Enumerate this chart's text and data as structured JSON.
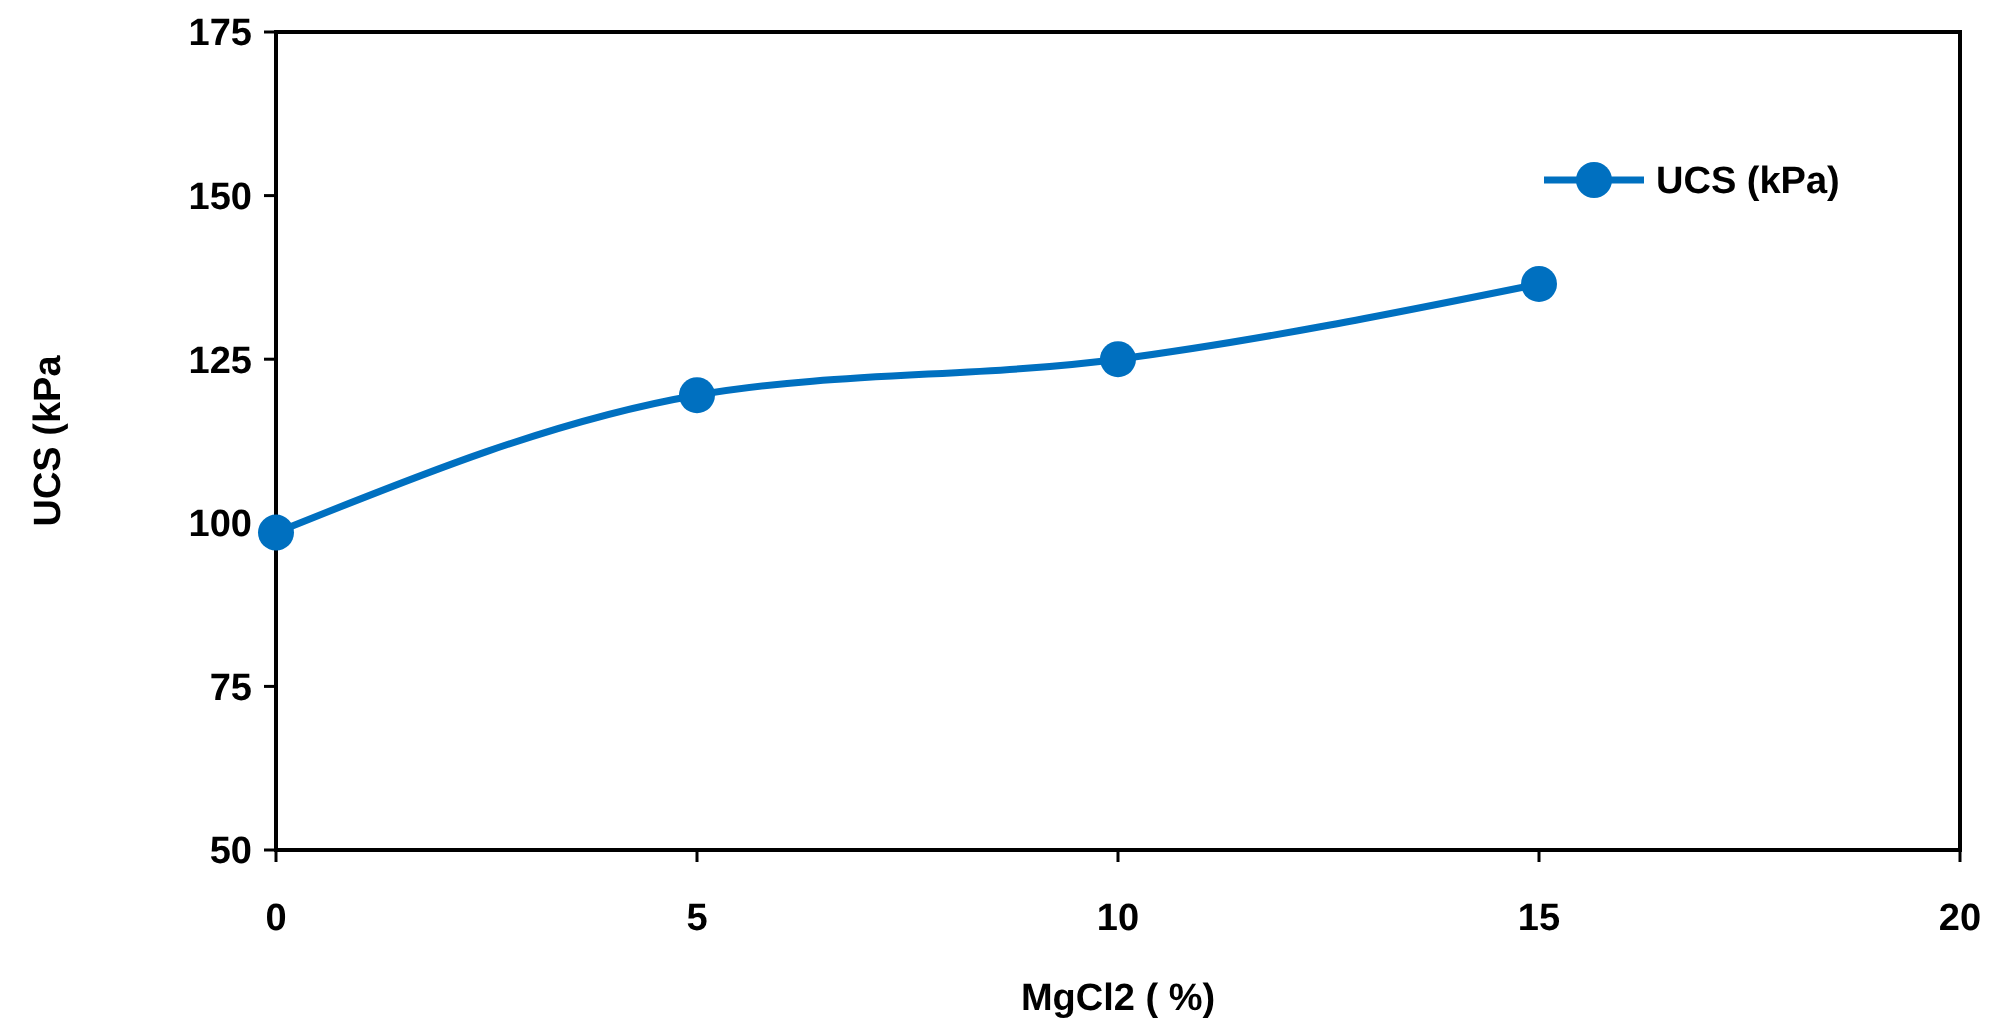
{
  "chart_data": {
    "type": "line",
    "xlabel": "MgCl2 ( %)",
    "ylabel": "UCS (kPa",
    "x": [
      0,
      5,
      10,
      15
    ],
    "series": [
      {
        "name": "UCS (kPa)",
        "color": "#0070c0",
        "values": [
          98.5,
          119.5,
          125,
          136.5
        ]
      }
    ],
    "xlim": [
      0,
      20
    ],
    "xticks": [
      0,
      5,
      10,
      15,
      20
    ],
    "ylim": [
      50,
      175
    ],
    "yticks": [
      50,
      75,
      100,
      125,
      150,
      175
    ],
    "grid": false,
    "legend": "top right",
    "marker": "circle",
    "line_style": "solid"
  }
}
